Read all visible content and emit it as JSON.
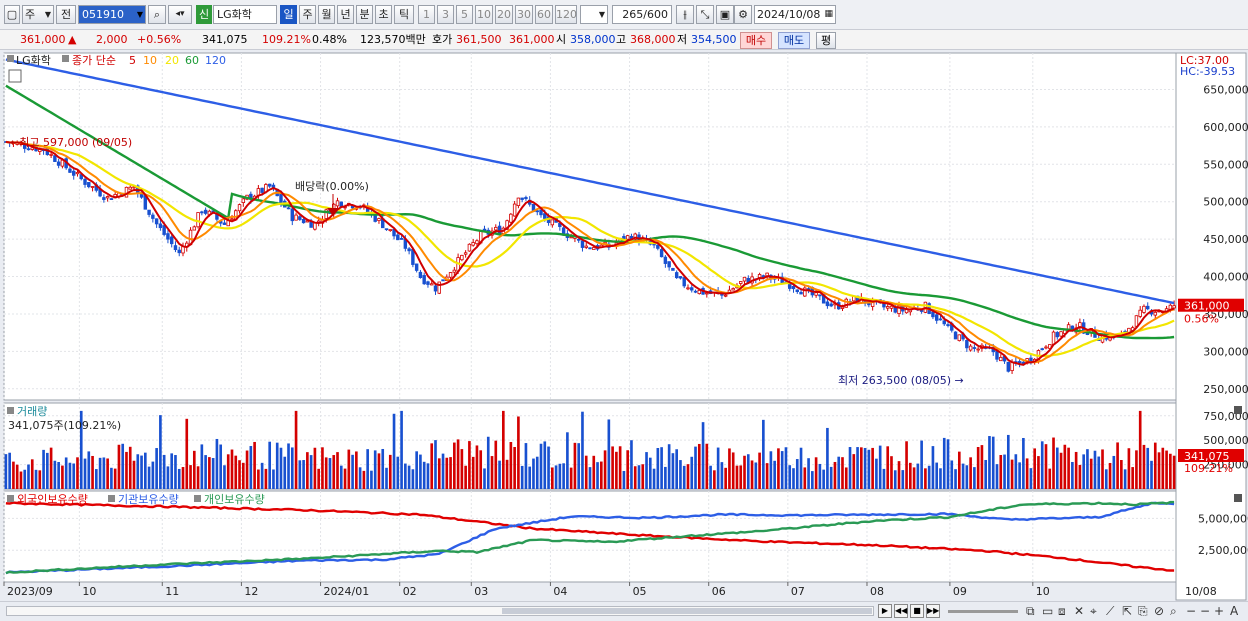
{
  "toolbar": {
    "period_select": "주",
    "prev_label": "전",
    "code": "051910",
    "name_badge": "신",
    "stock_name": "LG화학",
    "periods": [
      "일",
      "주",
      "월",
      "년",
      "분",
      "초",
      "틱"
    ],
    "active_period": "일",
    "minutes": [
      "1",
      "3",
      "5",
      "10",
      "20",
      "30",
      "60",
      "120"
    ],
    "count": "265",
    "count_total": "/600",
    "date": "2024/10/08"
  },
  "quote": {
    "price": "361,000",
    "change": "2,000",
    "change_pct": "+0.56%",
    "volume": "341,075",
    "volume_ratio": "109.21%",
    "turnover": "0.48%",
    "amount": "123,570백만",
    "bid_label": "호가",
    "bid1": "361,500",
    "bid2": "361,000",
    "open_label": "시",
    "open": "358,000",
    "high_label": "고",
    "high": "368,000",
    "low_label": "저",
    "low": "354,500",
    "buy_label": "매수",
    "sell_label": "매도",
    "eval_label": "평"
  },
  "colors": {
    "up": "#d40000",
    "down": "#1850d0",
    "ma5": "#d00000",
    "ma10": "#ff8a00",
    "ma20": "#f2e600",
    "ma60": "#1a9a35",
    "ma120": "#2d5ee6",
    "foreign": "#e00000",
    "institution": "#2d5ee6",
    "individual": "#2a9a55"
  },
  "chart_data": [
    {
      "type": "candlestick",
      "title": "LG화학",
      "legend": {
        "label": "종가 단순",
        "periods": [
          "5",
          "10",
          "20",
          "60",
          "120"
        ]
      },
      "x_ticks": [
        "2023/09",
        "10",
        "11",
        "12",
        "2024/01",
        "02",
        "03",
        "04",
        "05",
        "06",
        "07",
        "08",
        "09",
        "10",
        "10/08"
      ],
      "y_ticks": [
        "650,000",
        "600,000",
        "550,000",
        "500,000",
        "450,000",
        "400,000",
        "350,000",
        "300,000",
        "250,000"
      ],
      "ylim": [
        235000,
        680000
      ],
      "top_right": [
        "LC:37.00",
        "HC:-39.53"
      ],
      "last_price": "361,000",
      "last_change": "0.56%",
      "annotations": {
        "high": "최고 597,000 (09/05)",
        "low": "최저 263,500 (08/05)",
        "dividend": "배당락(0.00%)"
      },
      "close_anchors": [
        [
          0,
          580000
        ],
        [
          10,
          570000
        ],
        [
          20,
          530000
        ],
        [
          27,
          505000
        ],
        [
          34,
          520000
        ],
        [
          40,
          470000
        ],
        [
          46,
          430000
        ],
        [
          52,
          490000
        ],
        [
          58,
          470000
        ],
        [
          64,
          505000
        ],
        [
          70,
          520000
        ],
        [
          76,
          480000
        ],
        [
          82,
          470000
        ],
        [
          88,
          500000
        ],
        [
          94,
          495000
        ],
        [
          100,
          470000
        ],
        [
          106,
          440000
        ],
        [
          110,
          400000
        ],
        [
          114,
          385000
        ],
        [
          120,
          420000
        ],
        [
          126,
          455000
        ],
        [
          132,
          465000
        ],
        [
          136,
          510000
        ],
        [
          142,
          480000
        ],
        [
          148,
          460000
        ],
        [
          154,
          440000
        ],
        [
          160,
          440000
        ],
        [
          166,
          455000
        ],
        [
          172,
          440000
        ],
        [
          178,
          395000
        ],
        [
          184,
          380000
        ],
        [
          190,
          375000
        ],
        [
          196,
          395000
        ],
        [
          202,
          400000
        ],
        [
          208,
          390000
        ],
        [
          214,
          375000
        ],
        [
          220,
          360000
        ],
        [
          226,
          370000
        ],
        [
          232,
          360000
        ],
        [
          238,
          355000
        ],
        [
          244,
          360000
        ],
        [
          250,
          330000
        ],
        [
          256,
          305000
        ],
        [
          262,
          300000
        ],
        [
          266,
          278000
        ],
        [
          272,
          290000
        ],
        [
          278,
          320000
        ],
        [
          284,
          335000
        ],
        [
          290,
          320000
        ],
        [
          296,
          320000
        ],
        [
          302,
          355000
        ],
        [
          308,
          355000
        ],
        [
          310,
          361000
        ]
      ]
    },
    {
      "type": "bar",
      "title": "거래량",
      "last_label": "341,075주(109.21%)",
      "y_ticks": [
        "750,000",
        "500,000",
        "250,000"
      ],
      "ylim": [
        0,
        850000
      ],
      "last_value": "341,075",
      "last_ratio": "109.21%",
      "value_anchors": [
        [
          0,
          280000
        ],
        [
          30,
          320000
        ],
        [
          60,
          360000
        ],
        [
          90,
          300000
        ],
        [
          120,
          380000
        ],
        [
          150,
          340000
        ],
        [
          180,
          330000
        ],
        [
          210,
          320000
        ],
        [
          240,
          350000
        ],
        [
          270,
          390000
        ],
        [
          290,
          330000
        ],
        [
          310,
          341075
        ]
      ]
    },
    {
      "type": "line",
      "series": [
        {
          "name": "외국인보유수량",
          "points": [
            [
              0,
              6200000
            ],
            [
              40,
              5950000
            ],
            [
              80,
              5650000
            ],
            [
              110,
              5300000
            ],
            [
              140,
              4200000
            ],
            [
              170,
              3650000
            ],
            [
              200,
              3200000
            ],
            [
              230,
              2900000
            ],
            [
              260,
              2450000
            ],
            [
              280,
              1900000
            ],
            [
              300,
              1200000
            ],
            [
              310,
              900000
            ]
          ]
        },
        {
          "name": "기관보유수량",
          "points": [
            [
              0,
              750000
            ],
            [
              40,
              1200000
            ],
            [
              80,
              1700000
            ],
            [
              100,
              1750000
            ],
            [
              115,
              2200000
            ],
            [
              130,
              4200000
            ],
            [
              150,
              5150000
            ],
            [
              170,
              5050000
            ],
            [
              190,
              5300000
            ],
            [
              210,
              5250000
            ],
            [
              230,
              5300000
            ],
            [
              250,
              5350000
            ],
            [
              266,
              4900000
            ],
            [
              290,
              5100000
            ],
            [
              305,
              6250000
            ],
            [
              310,
              6100000
            ]
          ]
        },
        {
          "name": "개인보유수량",
          "points": [
            [
              0,
              750000
            ],
            [
              40,
              1350000
            ],
            [
              80,
              1850000
            ],
            [
              100,
              2200000
            ],
            [
              115,
              2450000
            ],
            [
              125,
              2350000
            ],
            [
              140,
              3300000
            ],
            [
              160,
              3150000
            ],
            [
              180,
              3600000
            ],
            [
              200,
              4000000
            ],
            [
              230,
              4800000
            ],
            [
              250,
              5100000
            ],
            [
              270,
              6100000
            ],
            [
              290,
              6200000
            ],
            [
              300,
              6100000
            ],
            [
              310,
              6250000
            ]
          ]
        }
      ],
      "y_ticks": [
        "5,000,000",
        "2,500,000"
      ],
      "ylim": [
        0,
        7000000
      ]
    }
  ]
}
